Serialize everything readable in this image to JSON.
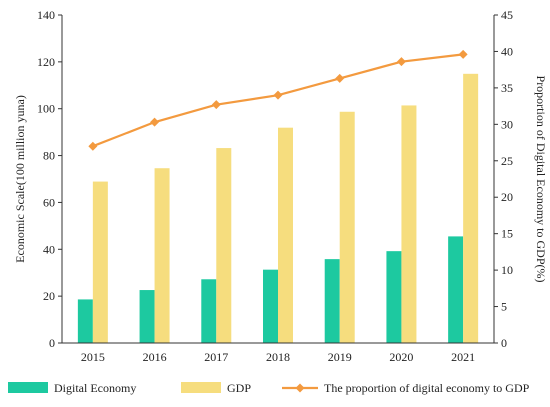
{
  "chart_data": {
    "type": "bar",
    "categories": [
      "2015",
      "2016",
      "2017",
      "2018",
      "2019",
      "2020",
      "2021"
    ],
    "series": [
      {
        "name": "Digital Economy",
        "type": "bar",
        "axis": "left",
        "color": "#1dc9a0",
        "values": [
          18.6,
          22.6,
          27.2,
          31.3,
          35.8,
          39.2,
          45.5
        ]
      },
      {
        "name": "GDP",
        "type": "bar",
        "axis": "left",
        "color": "#f6dd7e",
        "values": [
          68.9,
          74.6,
          83.2,
          91.9,
          98.7,
          101.4,
          114.9
        ]
      },
      {
        "name": "The proportion of digital economy to GDP",
        "type": "line",
        "axis": "right",
        "color": "#f39a3f",
        "values": [
          27.0,
          30.3,
          32.7,
          34.0,
          36.3,
          38.6,
          39.6
        ]
      }
    ],
    "ylabel_left": "Economic Scale(100 million yuna)",
    "ylabel_right": "Proportion of Digital Economy to GDP(%)",
    "ylim_left": [
      0,
      140
    ],
    "yticks_left": [
      "0",
      "20",
      "40",
      "60",
      "80",
      "100",
      "120",
      "140"
    ],
    "ylim_right": [
      0,
      45
    ],
    "yticks_right": [
      "0",
      "5",
      "10",
      "15",
      "20",
      "25",
      "30",
      "35",
      "40",
      "45"
    ],
    "grid": false,
    "legend_position": "bottom"
  }
}
